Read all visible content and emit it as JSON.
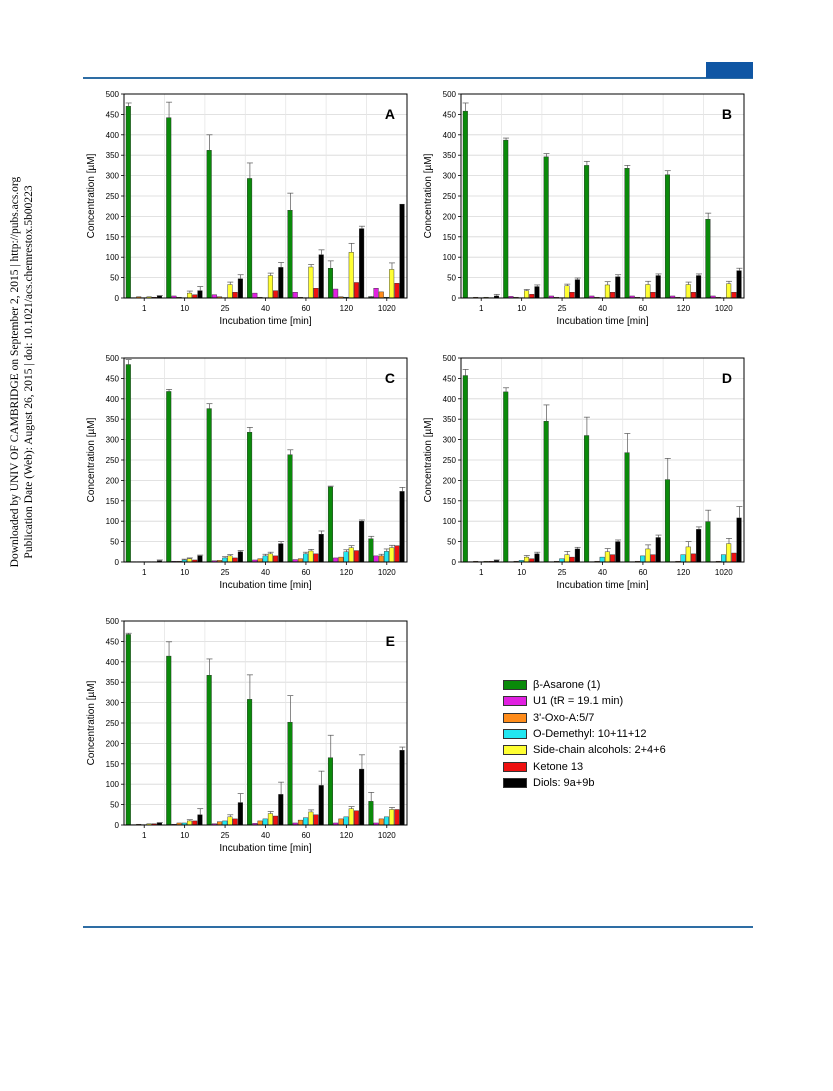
{
  "header": {
    "accent_color": "#2e6da4"
  },
  "sidebar": {
    "line1": "Downloaded by UNIV OF CAMBRIDGE on September 2, 2015 | http://pubs.acs.org",
    "line2": "Publication Date (Web): August 26, 2015 | doi: 10.1021/acs.chemrestox.5b00223"
  },
  "legend": {
    "items": [
      {
        "color": "#0a8a0a",
        "label": "β-Asarone (1)"
      },
      {
        "color": "#e020e0",
        "label": "U1 (tR = 19.1 min)"
      },
      {
        "color": "#ff8c1a",
        "label": "3'-Oxo-A:5/7"
      },
      {
        "color": "#22e6f0",
        "label": "O-Demethyl: 10+11+12"
      },
      {
        "color": "#ffff33",
        "label": "Side-chain alcohols: 2+4+6"
      },
      {
        "color": "#ee1111",
        "label": "Ketone 13"
      },
      {
        "color": "#000000",
        "label": "Diols: 9a+9b"
      }
    ]
  },
  "chart_data": [
    {
      "type": "bar",
      "panel": "A",
      "categories": [
        "1",
        "10",
        "25",
        "40",
        "60",
        "120",
        "1020"
      ],
      "xlabel": "Incubation time [min]",
      "ylabel": "Concentration [µM]",
      "ylim": [
        0,
        500
      ],
      "yticks": [
        0,
        50,
        100,
        150,
        200,
        250,
        300,
        350,
        400,
        450,
        500
      ],
      "series": [
        {
          "name": "β-Asarone (1)",
          "values": [
            470,
            442,
            362,
            293,
            215,
            73,
            2
          ],
          "errors": [
            8,
            38,
            38,
            38,
            42,
            18,
            2
          ]
        },
        {
          "name": "U1",
          "values": [
            1,
            5,
            8,
            12,
            14,
            22,
            24
          ],
          "errors": [
            0,
            0,
            0,
            0,
            0,
            0,
            0
          ]
        },
        {
          "name": "3'-Oxo-A:5/7",
          "values": [
            3,
            2,
            3,
            2,
            2,
            3,
            15
          ],
          "errors": [
            0,
            0,
            0,
            0,
            0,
            0,
            0
          ]
        },
        {
          "name": "O-Demethyl: 10+11+12",
          "values": [
            1,
            1,
            1,
            1,
            1,
            2,
            2
          ],
          "errors": [
            0,
            0,
            0,
            0,
            0,
            0,
            0
          ]
        },
        {
          "name": "Side-chain alcohols: 2+4+6",
          "values": [
            3,
            12,
            33,
            55,
            76,
            112,
            70
          ],
          "errors": [
            0,
            5,
            6,
            6,
            6,
            22,
            16
          ]
        },
        {
          "name": "Ketone 13",
          "values": [
            2,
            8,
            14,
            18,
            24,
            38,
            36
          ],
          "errors": [
            0,
            0,
            0,
            0,
            0,
            0,
            0
          ]
        },
        {
          "name": "Diols: 9a+9b",
          "values": [
            5,
            18,
            47,
            75,
            106,
            170,
            230
          ],
          "errors": [
            1,
            10,
            10,
            12,
            12,
            6,
            0
          ]
        }
      ]
    },
    {
      "type": "bar",
      "panel": "B",
      "categories": [
        "1",
        "10",
        "25",
        "40",
        "60",
        "120",
        "1020"
      ],
      "xlabel": "Incubation time [min]",
      "ylabel": "Concentration [µM]",
      "ylim": [
        0,
        500
      ],
      "yticks": [
        0,
        50,
        100,
        150,
        200,
        250,
        300,
        350,
        400,
        450,
        500
      ],
      "series": [
        {
          "name": "β-Asarone (1)",
          "values": [
            458,
            387,
            346,
            325,
            318,
            302,
            193
          ],
          "errors": [
            20,
            5,
            8,
            10,
            7,
            10,
            15
          ]
        },
        {
          "name": "U1",
          "values": [
            1,
            4,
            5,
            5,
            5,
            5,
            5
          ],
          "errors": [
            0,
            0,
            0,
            0,
            0,
            0,
            0
          ]
        },
        {
          "name": "3'-Oxo-A:5/7",
          "values": [
            2,
            2,
            2,
            2,
            2,
            2,
            2
          ],
          "errors": [
            0,
            0,
            0,
            0,
            0,
            0,
            0
          ]
        },
        {
          "name": "O-Demethyl: 10+11+12",
          "values": [
            1,
            1,
            1,
            1,
            1,
            1,
            1
          ],
          "errors": [
            0,
            0,
            0,
            0,
            0,
            0,
            0
          ]
        },
        {
          "name": "Side-chain alcohols: 2+4+6",
          "values": [
            2,
            18,
            30,
            32,
            33,
            33,
            35
          ],
          "errors": [
            0,
            3,
            4,
            8,
            8,
            6,
            6
          ]
        },
        {
          "name": "Ketone 13",
          "values": [
            1,
            9,
            14,
            14,
            14,
            14,
            14
          ],
          "errors": [
            0,
            0,
            0,
            0,
            0,
            0,
            0
          ]
        },
        {
          "name": "Diols: 9a+9b",
          "values": [
            5,
            28,
            45,
            52,
            55,
            55,
            67
          ],
          "errors": [
            4,
            4,
            4,
            5,
            4,
            4,
            6
          ]
        }
      ]
    },
    {
      "type": "bar",
      "panel": "C",
      "categories": [
        "1",
        "10",
        "25",
        "40",
        "60",
        "120",
        "1020"
      ],
      "xlabel": "Incubation time [min]",
      "ylabel": "Concentration [µM]",
      "ylim": [
        0,
        500
      ],
      "yticks": [
        0,
        50,
        100,
        150,
        200,
        250,
        300,
        350,
        400,
        450,
        500
      ],
      "series": [
        {
          "name": "β-Asarone (1)",
          "values": [
            484,
            418,
            376,
            318,
            263,
            184,
            57
          ],
          "errors": [
            12,
            5,
            12,
            12,
            12,
            2,
            6
          ]
        },
        {
          "name": "U1",
          "values": [
            1,
            2,
            3,
            5,
            6,
            10,
            15
          ],
          "errors": [
            0,
            0,
            0,
            0,
            0,
            0,
            0
          ]
        },
        {
          "name": "3'-Oxo-A:5/7",
          "values": [
            1,
            2,
            4,
            8,
            8,
            12,
            15
          ],
          "errors": [
            0,
            0,
            0,
            0,
            0,
            0,
            4
          ]
        },
        {
          "name": "O-Demethyl: 10+11+12",
          "values": [
            1,
            5,
            10,
            15,
            20,
            25,
            26
          ],
          "errors": [
            0,
            2,
            3,
            4,
            4,
            5,
            6
          ]
        },
        {
          "name": "Side-chain alcohols: 2+4+6",
          "values": [
            1,
            8,
            15,
            20,
            27,
            35,
            35
          ],
          "errors": [
            0,
            2,
            3,
            4,
            4,
            5,
            6
          ]
        },
        {
          "name": "Ketone 13",
          "values": [
            1,
            5,
            10,
            15,
            20,
            28,
            40
          ],
          "errors": [
            0,
            0,
            0,
            0,
            0,
            0,
            0
          ]
        },
        {
          "name": "Diols: 9a+9b",
          "values": [
            3,
            15,
            25,
            45,
            68,
            100,
            173
          ],
          "errors": [
            2,
            2,
            3,
            5,
            8,
            3,
            10
          ]
        }
      ]
    },
    {
      "type": "bar",
      "panel": "D",
      "categories": [
        "1",
        "10",
        "25",
        "40",
        "60",
        "120",
        "1020"
      ],
      "xlabel": "Incubation time [min]",
      "ylabel": "Concentration [µM]",
      "ylim": [
        0,
        500
      ],
      "yticks": [
        0,
        50,
        100,
        150,
        200,
        250,
        300,
        350,
        400,
        450,
        500
      ],
      "series": [
        {
          "name": "β-Asarone (1)",
          "values": [
            457,
            417,
            345,
            310,
            268,
            202,
            99
          ],
          "errors": [
            15,
            10,
            40,
            45,
            47,
            52,
            28
          ]
        },
        {
          "name": "U1",
          "values": [
            1,
            1,
            1,
            1,
            1,
            1,
            1
          ],
          "errors": [
            0,
            0,
            0,
            0,
            0,
            0,
            0
          ]
        },
        {
          "name": "3'-Oxo-A:5/7",
          "values": [
            2,
            2,
            2,
            2,
            2,
            2,
            2
          ],
          "errors": [
            0,
            0,
            0,
            0,
            0,
            0,
            0
          ]
        },
        {
          "name": "O-Demethyl: 10+11+12",
          "values": [
            1,
            4,
            8,
            12,
            15,
            18,
            18
          ],
          "errors": [
            0,
            0,
            0,
            0,
            0,
            0,
            0
          ]
        },
        {
          "name": "Side-chain alcohols: 2+4+6",
          "values": [
            2,
            12,
            18,
            25,
            32,
            37,
            45
          ],
          "errors": [
            0,
            4,
            8,
            8,
            10,
            13,
            13
          ]
        },
        {
          "name": "Ketone 13",
          "values": [
            2,
            8,
            12,
            18,
            18,
            20,
            22
          ],
          "errors": [
            0,
            0,
            0,
            0,
            0,
            0,
            0
          ]
        },
        {
          "name": "Diols: 9a+9b",
          "values": [
            4,
            20,
            32,
            50,
            60,
            80,
            108
          ],
          "errors": [
            1,
            4,
            4,
            4,
            6,
            6,
            28
          ]
        }
      ]
    },
    {
      "type": "bar",
      "panel": "E",
      "categories": [
        "1",
        "10",
        "25",
        "40",
        "60",
        "120",
        "1020"
      ],
      "xlabel": "Incubation time [min]",
      "ylabel": "Concentration [µM]",
      "ylim": [
        0,
        500
      ],
      "yticks": [
        0,
        50,
        100,
        150,
        200,
        250,
        300,
        350,
        400,
        450,
        500
      ],
      "series": [
        {
          "name": "β-Asarone (1)",
          "values": [
            467,
            414,
            367,
            308,
            252,
            165,
            58
          ],
          "errors": [
            3,
            35,
            40,
            60,
            65,
            55,
            22
          ]
        },
        {
          "name": "U1",
          "values": [
            1,
            2,
            3,
            4,
            5,
            5,
            5
          ],
          "errors": [
            0,
            0,
            0,
            0,
            0,
            0,
            0
          ]
        },
        {
          "name": "3'-Oxo-A:5/7",
          "values": [
            2,
            5,
            8,
            10,
            12,
            15,
            15
          ],
          "errors": [
            0,
            0,
            0,
            0,
            0,
            0,
            0
          ]
        },
        {
          "name": "O-Demethyl: 10+11+12",
          "values": [
            1,
            5,
            10,
            15,
            18,
            20,
            20
          ],
          "errors": [
            0,
            0,
            0,
            0,
            0,
            0,
            0
          ]
        },
        {
          "name": "Side-chain alcohols: 2+4+6",
          "values": [
            3,
            10,
            20,
            28,
            32,
            40,
            38
          ],
          "errors": [
            0,
            3,
            5,
            5,
            5,
            5,
            5
          ]
        },
        {
          "name": "Ketone 13",
          "values": [
            3,
            10,
            15,
            22,
            25,
            35,
            38
          ],
          "errors": [
            0,
            0,
            0,
            0,
            0,
            0,
            0
          ]
        },
        {
          "name": "Diols: 9a+9b",
          "values": [
            5,
            25,
            55,
            75,
            97,
            137,
            183
          ],
          "errors": [
            1,
            15,
            22,
            30,
            35,
            35,
            8
          ]
        }
      ]
    }
  ]
}
